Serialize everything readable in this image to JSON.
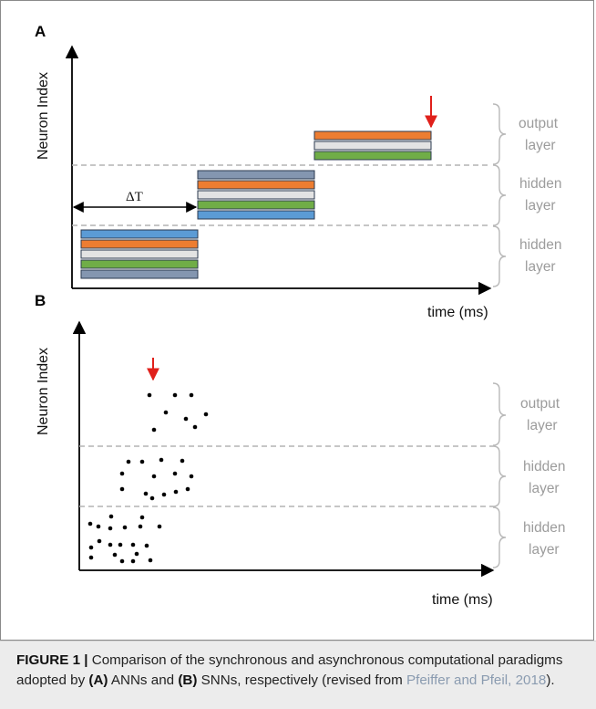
{
  "panels": {
    "A": {
      "letter": "A",
      "ylabel": "Neuron Index",
      "xlabel": "time (ms)",
      "delta_label": "ΔT",
      "layers": [
        {
          "line1": "output",
          "line2": "layer"
        },
        {
          "line1": "hidden",
          "line2": "layer"
        },
        {
          "line1": "hidden",
          "line2": "layer"
        }
      ]
    },
    "B": {
      "letter": "B",
      "ylabel": "Neuron Index",
      "xlabel": "time (ms)",
      "layers": [
        {
          "line1": "output",
          "line2": "layer"
        },
        {
          "line1": "hidden",
          "line2": "layer"
        },
        {
          "line1": "hidden",
          "line2": "layer"
        }
      ]
    }
  },
  "colors": {
    "blue": "#5b9bd5",
    "orange": "#ed7d31",
    "light": "#e3e3e3",
    "green": "#70ad47",
    "slate": "#8496b0",
    "arrow": "#e0201b"
  },
  "caption": {
    "figure_label": "FIGURE 1 |",
    "text1": " Comparison of the synchronous and asynchronous computational paradigms adopted by ",
    "bold_a": "(A)",
    "text2": " ANNs and ",
    "bold_b": "(B)",
    "text3": " SNNs, respectively (revised from ",
    "citation": "Pfeiffer and Pfeil, 2018",
    "text4": ")."
  }
}
